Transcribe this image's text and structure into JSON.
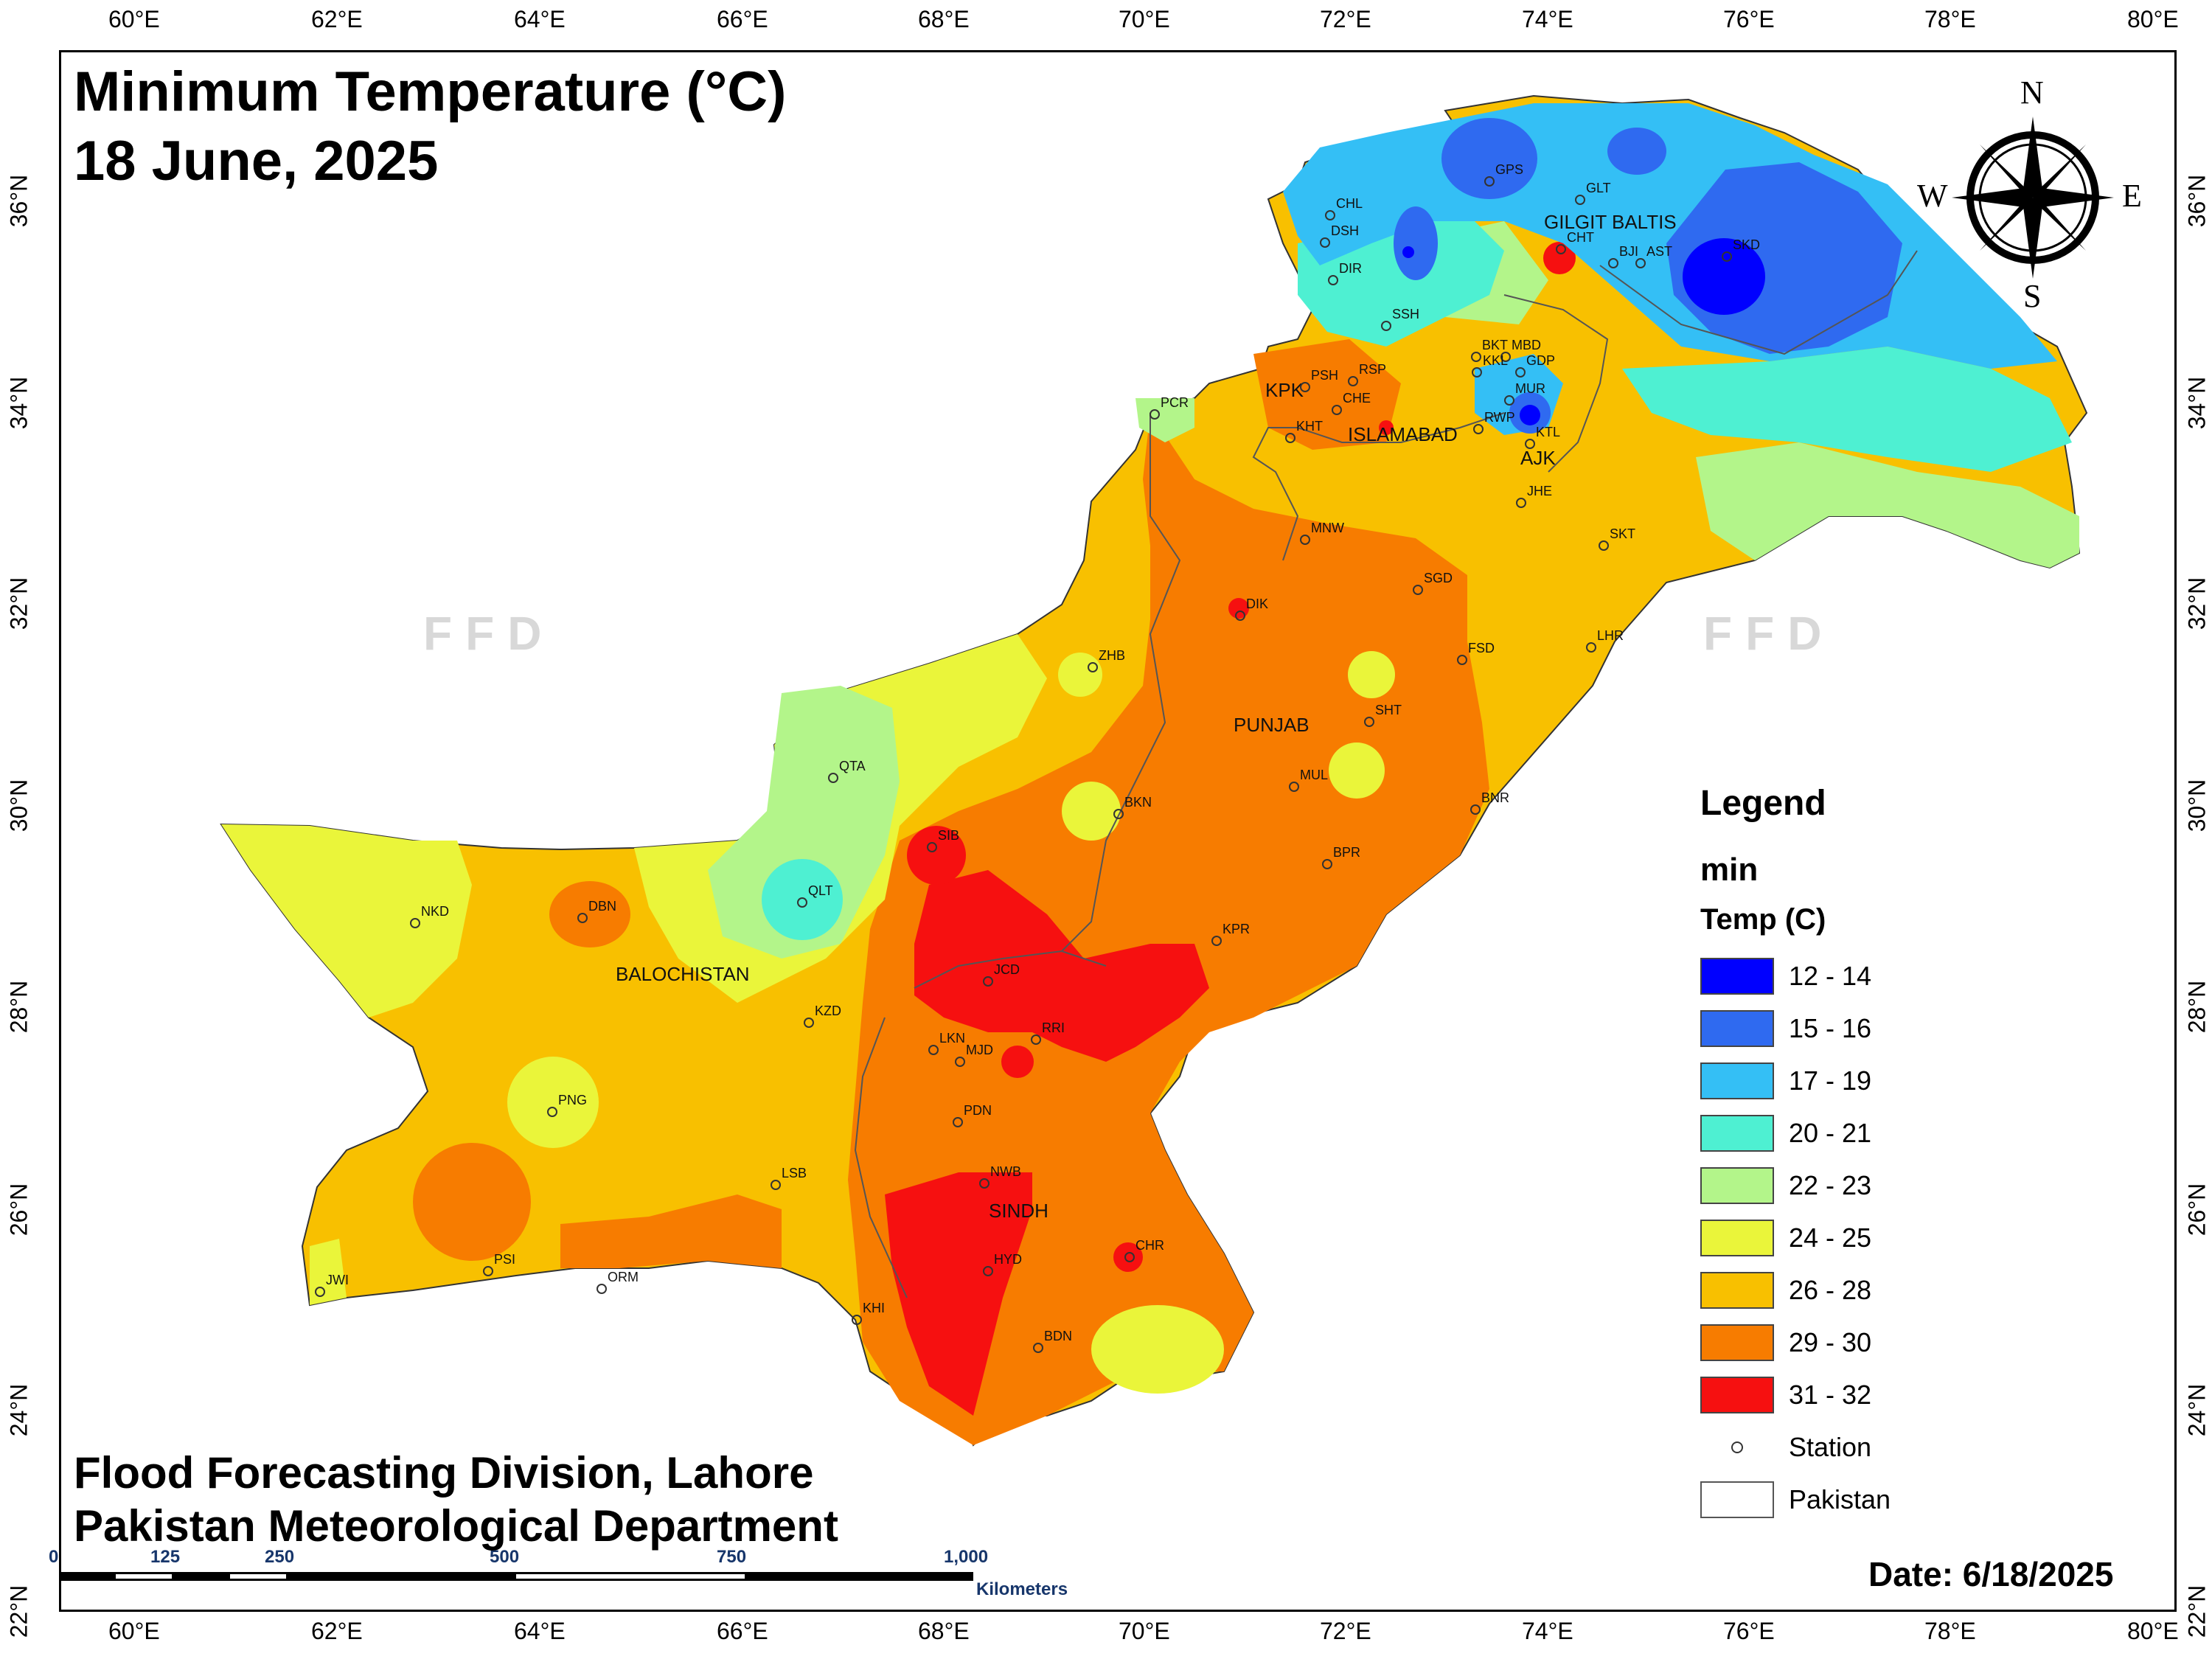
{
  "title": {
    "line1": "Minimum Temperature (°C)",
    "line2": "18 June, 2025"
  },
  "credits": {
    "line1": "Flood Forecasting Division, Lahore",
    "line2": "Pakistan Meteorological Department"
  },
  "date": "Date: 6/18/2025",
  "watermark": "FFD",
  "axes": {
    "lon_labels": [
      "60°E",
      "62°E",
      "64°E",
      "66°E",
      "68°E",
      "70°E",
      "72°E",
      "74°E",
      "76°E",
      "78°E",
      "80°E"
    ],
    "lat_labels": [
      "36°N",
      "34°N",
      "32°N",
      "30°N",
      "28°N",
      "26°N",
      "24°N",
      "22°N"
    ]
  },
  "compass": {
    "n": "N",
    "e": "E",
    "s": "S",
    "w": "W"
  },
  "legend": {
    "title": "Legend",
    "layer": "min",
    "field": "Temp (C)",
    "classes": [
      {
        "label": "12 - 14",
        "color": "#0000ff"
      },
      {
        "label": "15 - 16",
        "color": "#2f6af0"
      },
      {
        "label": "17 - 19",
        "color": "#34bff5"
      },
      {
        "label": "20 - 21",
        "color": "#4ef0d2"
      },
      {
        "label": "22 - 23",
        "color": "#b3f58a"
      },
      {
        "label": "24 - 25",
        "color": "#eaf53a"
      },
      {
        "label": "26 - 28",
        "color": "#f8c000"
      },
      {
        "label": "29 - 30",
        "color": "#f77c00"
      },
      {
        "label": "31 - 32",
        "color": "#f61010"
      }
    ],
    "station": "Station",
    "boundary": "Pakistan"
  },
  "scale": {
    "ticks": [
      "0",
      "125",
      "250",
      "500",
      "750",
      "1,000"
    ],
    "unit": "Kilometers"
  },
  "regions": [
    "GILGIT BALTIS",
    "KPK",
    "ISLAMABAD",
    "AJK",
    "PUNJAB",
    "BALOCHISTAN",
    "SINDH"
  ],
  "stations": [
    "CHL",
    "DSH",
    "DIR",
    "GPS",
    "GLT",
    "CHT",
    "BJI",
    "AST",
    "SKD",
    "SSH",
    "BKT",
    "MBD",
    "KKL",
    "GDP",
    "MUR",
    "RWP",
    "KTL",
    "PSH",
    "RSP",
    "CHE",
    "KHT",
    "PCR",
    "JHE",
    "SKT",
    "MNW",
    "SGD",
    "DIK",
    "FSD",
    "LHR",
    "ZHB",
    "SHT",
    "QTA",
    "MUL",
    "BKN",
    "BNR",
    "SIB",
    "BPR",
    "QLT",
    "DBN",
    "NKD",
    "KPR",
    "JCD",
    "KZD",
    "RRI",
    "LKN",
    "MJD",
    "PNG",
    "PDN",
    "LSB",
    "NWB",
    "PSI",
    "ORM",
    "JWI",
    "HYD",
    "CHR",
    "KHI",
    "BDN"
  ]
}
